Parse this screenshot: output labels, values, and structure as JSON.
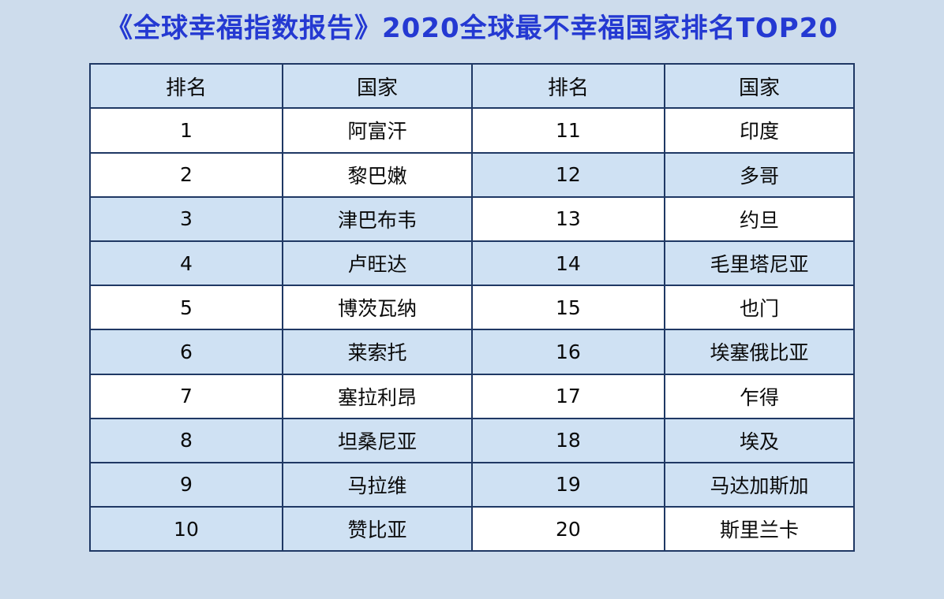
{
  "page": {
    "background": "#cddcec"
  },
  "title": {
    "text": "《全球幸福指数报告》2020全球最不幸福国家排名TOP20",
    "color": "#2439d2"
  },
  "table": {
    "border_color": "#1f3864",
    "shade_color": "#cfe1f3",
    "headers": [
      "排名",
      "国家",
      "排名",
      "国家"
    ],
    "rows": [
      {
        "rank_left": "1",
        "country_left": "阿富汗",
        "rank_right": "11",
        "country_right": "印度",
        "left_shaded": false,
        "right_shaded": false
      },
      {
        "rank_left": "2",
        "country_left": "黎巴嫩",
        "rank_right": "12",
        "country_right": "多哥",
        "left_shaded": false,
        "right_shaded": true
      },
      {
        "rank_left": "3",
        "country_left": "津巴布韦",
        "rank_right": "13",
        "country_right": "约旦",
        "left_shaded": true,
        "right_shaded": false
      },
      {
        "rank_left": "4",
        "country_left": "卢旺达",
        "rank_right": "14",
        "country_right": "毛里塔尼亚",
        "left_shaded": true,
        "right_shaded": true
      },
      {
        "rank_left": "5",
        "country_left": "博茨瓦纳",
        "rank_right": "15",
        "country_right": "也门",
        "left_shaded": false,
        "right_shaded": false
      },
      {
        "rank_left": "6",
        "country_left": "莱索托",
        "rank_right": "16",
        "country_right": "埃塞俄比亚",
        "left_shaded": true,
        "right_shaded": true
      },
      {
        "rank_left": "7",
        "country_left": "塞拉利昂",
        "rank_right": "17",
        "country_right": "乍得",
        "left_shaded": false,
        "right_shaded": false
      },
      {
        "rank_left": "8",
        "country_left": "坦桑尼亚",
        "rank_right": "18",
        "country_right": "埃及",
        "left_shaded": true,
        "right_shaded": true
      },
      {
        "rank_left": "9",
        "country_left": "马拉维",
        "rank_right": "19",
        "country_right": "马达加斯加",
        "left_shaded": true,
        "right_shaded": true
      },
      {
        "rank_left": "10",
        "country_left": "赞比亚",
        "rank_right": "20",
        "country_right": "斯里兰卡",
        "left_shaded": true,
        "right_shaded": false
      }
    ]
  },
  "chart_data": {
    "type": "table",
    "title": "《全球幸福指数报告》2020全球最不幸福国家排名TOP20",
    "columns": [
      "排名",
      "国家",
      "排名",
      "国家"
    ],
    "rows": [
      [
        "1",
        "阿富汗",
        "11",
        "印度"
      ],
      [
        "2",
        "黎巴嫩",
        "12",
        "多哥"
      ],
      [
        "3",
        "津巴布韦",
        "13",
        "约旦"
      ],
      [
        "4",
        "卢旺达",
        "14",
        "毛里塔尼亚"
      ],
      [
        "5",
        "博茨瓦纳",
        "15",
        "也门"
      ],
      [
        "6",
        "莱索托",
        "16",
        "埃塞俄比亚"
      ],
      [
        "7",
        "塞拉利昂",
        "17",
        "乍得"
      ],
      [
        "8",
        "坦桑尼亚",
        "18",
        "埃及"
      ],
      [
        "9",
        "马拉维",
        "19",
        "马达加斯加"
      ],
      [
        "10",
        "赞比亚",
        "20",
        "斯里兰卡"
      ]
    ]
  }
}
